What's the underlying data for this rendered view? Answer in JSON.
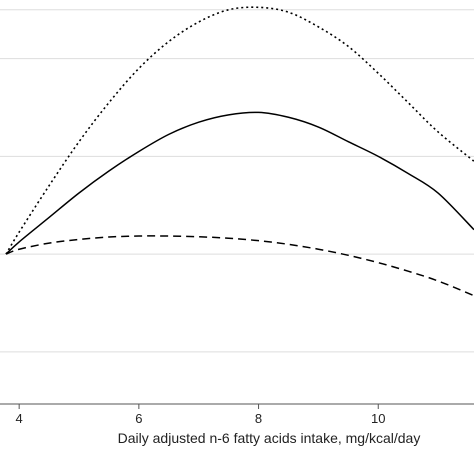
{
  "chart_data": {
    "type": "line",
    "xlabel": "Daily adjusted n-6 fatty acids intake, mg/kcal/day",
    "ylabel": "",
    "xlim": [
      3.78,
      11.6
    ],
    "ylim": [
      -0.9,
      1.04
    ],
    "x_ticks": [
      4,
      6,
      8,
      10
    ],
    "x_tick_labels": [
      "4",
      "6",
      "8",
      "10"
    ],
    "y_gridlines": [
      -0.4,
      0.0,
      0.4,
      0.8,
      1.0
    ],
    "grid": true,
    "legend": "none",
    "series": [
      {
        "style": "dotted",
        "x": [
          3.78,
          4.0,
          4.5,
          5.0,
          5.5,
          6.0,
          6.5,
          7.0,
          7.5,
          8.0,
          8.5,
          9.0,
          9.5,
          10.0,
          10.5,
          11.0,
          11.6
        ],
        "y": [
          0.0,
          0.09,
          0.28,
          0.46,
          0.62,
          0.76,
          0.87,
          0.95,
          1.0,
          1.01,
          0.99,
          0.93,
          0.85,
          0.74,
          0.62,
          0.5,
          0.38
        ]
      },
      {
        "style": "solid",
        "x": [
          3.78,
          4.0,
          4.5,
          5.0,
          5.5,
          6.0,
          6.5,
          7.0,
          7.5,
          8.0,
          8.5,
          9.0,
          9.5,
          10.0,
          10.5,
          11.0,
          11.6
        ],
        "y": [
          0.0,
          0.05,
          0.15,
          0.25,
          0.34,
          0.42,
          0.49,
          0.54,
          0.57,
          0.58,
          0.56,
          0.52,
          0.46,
          0.4,
          0.33,
          0.25,
          0.1
        ]
      },
      {
        "style": "dashed",
        "x": [
          3.78,
          4.0,
          4.5,
          5.0,
          5.5,
          6.0,
          6.5,
          7.0,
          7.5,
          8.0,
          8.5,
          9.0,
          9.5,
          10.0,
          10.5,
          11.0,
          11.6
        ],
        "y": [
          0.0,
          0.02,
          0.045,
          0.06,
          0.07,
          0.074,
          0.074,
          0.071,
          0.065,
          0.055,
          0.04,
          0.02,
          -0.005,
          -0.035,
          -0.07,
          -0.11,
          -0.17
        ]
      }
    ]
  }
}
